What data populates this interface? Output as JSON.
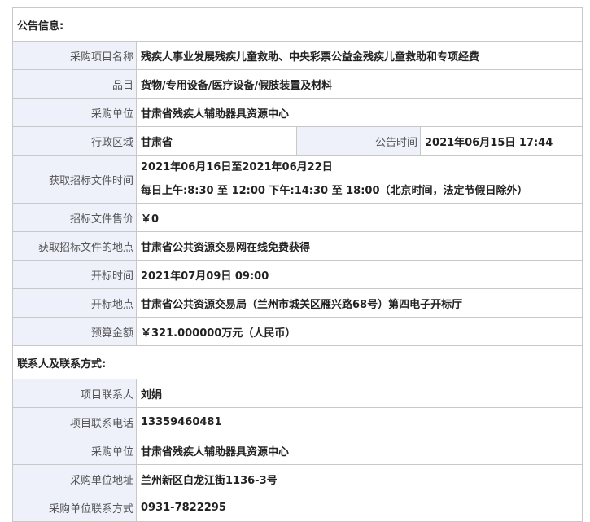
{
  "section1_title": "公告信息:",
  "rows1": {
    "project_name": {
      "label": "采购项目名称",
      "value": "残疾人事业发展残疾儿童救助、中央彩票公益金残疾儿童救助和专项经费"
    },
    "category": {
      "label": "品目",
      "value": "货物/专用设备/医疗设备/假肢装置及材料"
    },
    "purchaser": {
      "label": "采购单位",
      "value": "甘肃省残疾人辅助器具资源中心"
    },
    "region": {
      "label": "行政区域",
      "value": "甘肃省"
    },
    "announce_time": {
      "label": "公告时间",
      "value": "2021年06月15日 17:44"
    },
    "doc_time": {
      "label": "获取招标文件时间",
      "value_line1": "2021年06月16日至2021年06月22日",
      "value_line2": "每日上午:8:30 至 12:00  下午:14:30 至 18:00（北京时间，法定节假日除外）"
    },
    "doc_price": {
      "label": "招标文件售价",
      "value": "￥0"
    },
    "doc_place": {
      "label": "获取招标文件的地点",
      "value": "甘肃省公共资源交易网在线免费获得"
    },
    "open_time": {
      "label": "开标时间",
      "value": "2021年07月09日 09:00"
    },
    "open_place": {
      "label": "开标地点",
      "value": "甘肃省公共资源交易局（兰州市城关区雁兴路68号）第四电子开标厅"
    },
    "budget": {
      "label": "预算金额",
      "value": "￥321.000000万元（人民币）"
    }
  },
  "section2_title": "联系人及联系方式:",
  "rows2": {
    "contact": {
      "label": "项目联系人",
      "value": "刘娟"
    },
    "contact_phone": {
      "label": "项目联系电话",
      "value": "13359460481"
    },
    "purchaser": {
      "label": "采购单位",
      "value": "甘肃省残疾人辅助器具资源中心"
    },
    "purchaser_address": {
      "label": "采购单位地址",
      "value": "兰州新区白龙江街1136-3号"
    },
    "purchaser_contact": {
      "label": "采购单位联系方式",
      "value": "0931-7822295"
    }
  }
}
